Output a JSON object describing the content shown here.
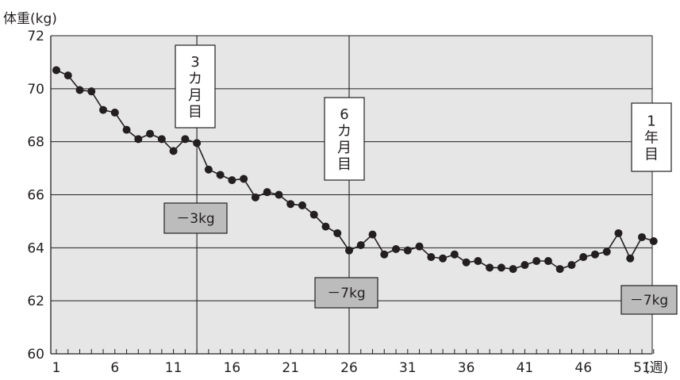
{
  "chart_data": {
    "type": "line",
    "ylabel": "体重(kg)",
    "xunit": "(週)",
    "ylim": [
      60,
      72
    ],
    "xlim": [
      1,
      51
    ],
    "yticks": [
      60,
      62,
      64,
      66,
      68,
      70,
      72
    ],
    "xticks": [
      1,
      6,
      11,
      16,
      21,
      26,
      31,
      36,
      41,
      46,
      51
    ],
    "grid": true,
    "series": [
      {
        "x": [
          1,
          2,
          3,
          4,
          5,
          6,
          7,
          8,
          9,
          10,
          11,
          12,
          13,
          14,
          15,
          16,
          17,
          18,
          19,
          20,
          21,
          22,
          23,
          24,
          25,
          26,
          27,
          28,
          29,
          30,
          31,
          32,
          33,
          34,
          35,
          36,
          37,
          38,
          39,
          40,
          41,
          42,
          43,
          44,
          45,
          46,
          47,
          48,
          49,
          50,
          51,
          52
        ],
        "values": [
          70.7,
          70.5,
          69.95,
          69.9,
          69.2,
          69.1,
          68.45,
          68.1,
          68.3,
          68.1,
          67.65,
          68.1,
          67.95,
          66.95,
          66.75,
          66.55,
          66.6,
          65.9,
          66.1,
          66.0,
          65.65,
          65.6,
          65.25,
          64.8,
          64.55,
          63.9,
          64.1,
          64.5,
          63.75,
          63.95,
          63.9,
          64.05,
          63.65,
          63.6,
          63.75,
          63.45,
          63.5,
          63.25,
          63.25,
          63.2,
          63.35,
          63.5,
          63.5,
          63.2,
          63.35,
          63.65,
          63.75,
          63.85,
          64.55,
          63.6,
          64.4,
          64.25
        ]
      }
    ],
    "markers": [
      {
        "week": 13,
        "label": "3カ月目"
      },
      {
        "week": 26,
        "label": "6カ月目"
      },
      {
        "week": 52,
        "label": "1年目"
      }
    ],
    "annotations": [
      {
        "text": "－3kg",
        "week": 13
      },
      {
        "text": "－7kg",
        "week": 26
      },
      {
        "text": "－7kg",
        "week": 52
      }
    ]
  }
}
